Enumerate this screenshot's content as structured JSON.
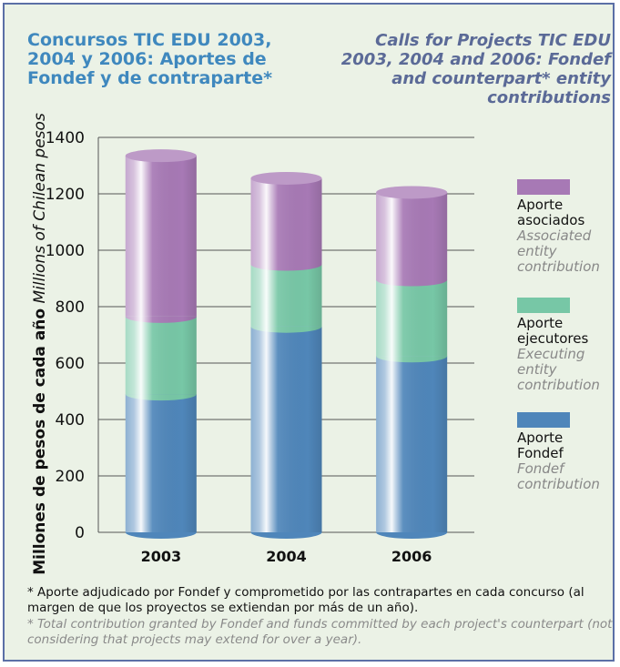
{
  "title_es": "Concursos TIC EDU 2003, 2004 y 2006: Aportes de Fondef y de contraparte*",
  "title_en": "Calls for Projects TIC EDU 2003, 2004 and 2006: Fondef and counterpart* entity contributions",
  "ylabel_es": "Millones de pesos de cada año",
  "ylabel_en": "Millions of Chilean pesos",
  "footnote_es": "* Aporte adjudicado por Fondef y comprometido por las contrapartes en cada concurso (al margen de que los proyectos se extiendan por más de un año).",
  "footnote_en": "* Total contribution granted by Fondef and funds committed by each project's counterpart (not considering that projects may extend for over a year).",
  "chart_data": {
    "type": "bar",
    "stacked": true,
    "categories": [
      "2003",
      "2004",
      "2006"
    ],
    "series": [
      {
        "name": "Aporte Fondef",
        "name_en": "Fondef contribution",
        "color": "#4f86ba",
        "values": [
          490,
          730,
          625
        ]
      },
      {
        "name": "Aporte ejecutores",
        "name_en": "Executing entity contribution",
        "color": "#77c7a6",
        "values": [
          275,
          220,
          270
        ]
      },
      {
        "name": "Aporte asociados",
        "name_en": "Associated entity contribution",
        "color": "#a779b5",
        "values": [
          570,
          305,
          310
        ]
      }
    ],
    "ylim": [
      0,
      1400
    ],
    "yticks": [
      0,
      200,
      400,
      600,
      800,
      1000,
      1200,
      1400
    ],
    "grid": true,
    "legend_position": "right"
  }
}
